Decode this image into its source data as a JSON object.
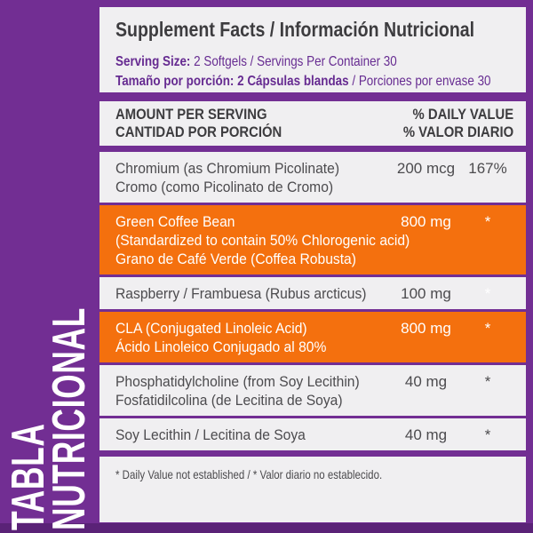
{
  "colors": {
    "purple": "#722E93",
    "purple_dark": "#5A2277",
    "orange": "#F4700E",
    "panel": "#F0EFF1",
    "ink": "#3D3C3F",
    "ink2": "#4C4B4E",
    "grape": "#662B91"
  },
  "side_label": {
    "line1": "TABLA",
    "line2": "NUTRICIONAL"
  },
  "title": "Supplement Facts / Información Nutricional",
  "serving": {
    "line1_bold": "Serving Size:",
    "line1_rest": " 2 Softgels / Servings Per Container 30",
    "line2_bold": "Tamaño por porción: 2 Cápsulas blandas",
    "line2_rest": " / Porciones por envase 30"
  },
  "header": {
    "left_line1": "AMOUNT PER SERVING",
    "left_line2": "CANTIDAD POR PORCIÓN",
    "right_line1": "% DAILY VALUE",
    "right_line2": "% VALOR DIARIO"
  },
  "rows": [
    {
      "lines": [
        "Chromium (as Chromium Picolinate)",
        "Cromo (como Picolinato de Cromo)"
      ],
      "amount": "200 mcg",
      "dv": "167%",
      "highlight": false,
      "dv_white": false
    },
    {
      "lines": [
        "Green Coffee Bean",
        "(Standardized to contain 50% Chlorogenic acid)",
        "Grano de Café Verde (Coffea Robusta)"
      ],
      "amount": "800 mg",
      "dv": "*",
      "highlight": true,
      "dv_white": false
    },
    {
      "lines": [
        "Raspberry / Frambuesa (Rubus arcticus)"
      ],
      "amount": "100 mg",
      "dv": "*",
      "highlight": false,
      "dv_white": true
    },
    {
      "lines": [
        "CLA (Conjugated Linoleic Acid)",
        "Ácido Linoleico Conjugado al 80%"
      ],
      "amount": "800 mg",
      "dv": "*",
      "highlight": true,
      "dv_white": false
    },
    {
      "lines": [
        "Phosphatidylcholine (from Soy Lecithin)",
        "Fosfatidilcolina (de Lecitina de Soya)"
      ],
      "amount": "40 mg",
      "dv": "*",
      "highlight": false,
      "dv_white": false
    },
    {
      "lines": [
        "Soy Lecithin / Lecitina de Soya"
      ],
      "amount": "40 mg",
      "dv": "*",
      "highlight": false,
      "dv_white": false
    }
  ],
  "footnote": "* Daily Value not established / * Valor diario no establecido."
}
